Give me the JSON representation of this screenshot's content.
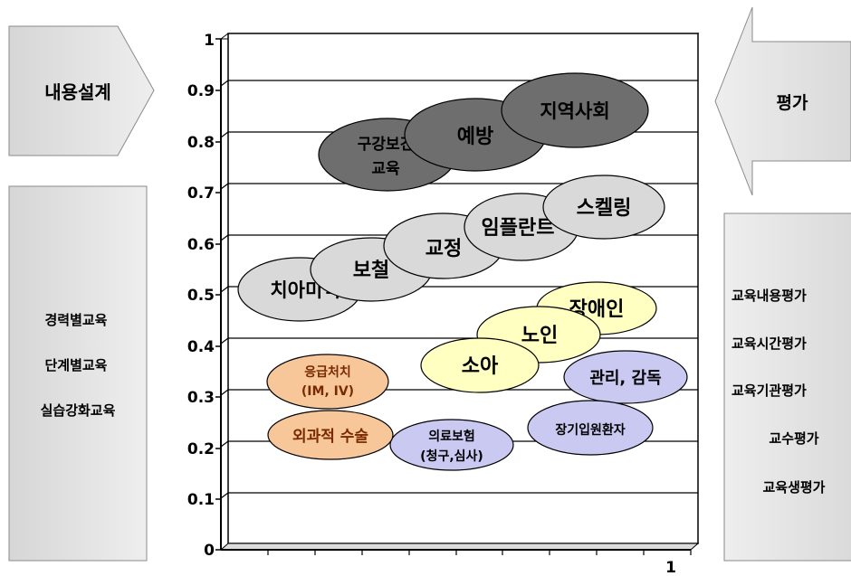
{
  "left_panel": {
    "arrow_label": "내용설계",
    "items": [
      "경력별교육",
      "단계별교육",
      "실습강화교육"
    ]
  },
  "right_panel": {
    "arrow_label": "평가",
    "items": [
      "교육내용평가",
      "교육시간평가",
      "교육기관평가",
      "교수평가",
      "교육생평가"
    ]
  },
  "axis": {
    "y_ticks": [
      "0",
      "0.1",
      "0.2",
      "0.3",
      "0.4",
      "0.5",
      "0.6",
      "0.7",
      "0.8",
      "0.9",
      "1"
    ],
    "x_end_label": "1"
  },
  "ellipses": [
    {
      "lines": [
        "구강보건",
        "교육"
      ],
      "fill": "#6e6e6e",
      "text_color": "#000000"
    },
    {
      "lines": [
        "예방"
      ],
      "fill": "#6e6e6e",
      "text_color": "#000000"
    },
    {
      "lines": [
        "지역사회"
      ],
      "fill": "#6e6e6e",
      "text_color": "#000000"
    },
    {
      "lines": [
        "치아미백"
      ],
      "fill": "#d9d9d9",
      "text_color": "#000000"
    },
    {
      "lines": [
        "보철"
      ],
      "fill": "#d9d9d9",
      "text_color": "#000000"
    },
    {
      "lines": [
        "교정"
      ],
      "fill": "#d9d9d9",
      "text_color": "#000000"
    },
    {
      "lines": [
        "임플란트"
      ],
      "fill": "#d9d9d9",
      "text_color": "#000000"
    },
    {
      "lines": [
        "스켈링"
      ],
      "fill": "#d9d9d9",
      "text_color": "#000000"
    },
    {
      "lines": [
        "장애인"
      ],
      "fill": "#ffffc2",
      "text_color": "#000000"
    },
    {
      "lines": [
        "노인"
      ],
      "fill": "#ffffc2",
      "text_color": "#000000"
    },
    {
      "lines": [
        "소아"
      ],
      "fill": "#ffffc2",
      "text_color": "#000000"
    },
    {
      "lines": [
        "관리, 감독"
      ],
      "fill": "#c9c9f2",
      "text_color": "#000000"
    },
    {
      "lines": [
        "장기입원환자"
      ],
      "fill": "#c9c9f2",
      "text_color": "#000000"
    },
    {
      "lines": [
        "의료보험",
        "(청구,심사)"
      ],
      "fill": "#c9c9f2",
      "text_color": "#000000"
    },
    {
      "lines": [
        "응급처치",
        "(IM, IV)"
      ],
      "fill": "#f7c79a",
      "text_color": "#7a2a00"
    },
    {
      "lines": [
        "외과적 수술"
      ],
      "fill": "#f7c79a",
      "text_color": "#7a2a00"
    }
  ]
}
